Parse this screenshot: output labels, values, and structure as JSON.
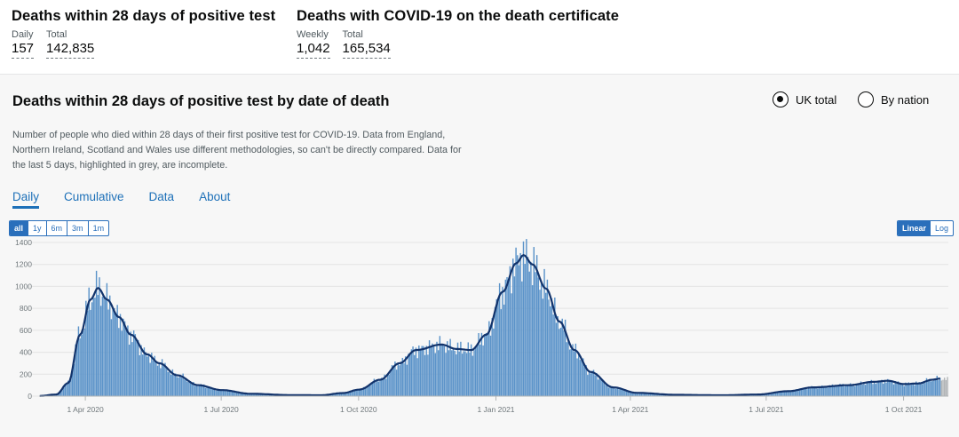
{
  "headline": {
    "deaths28": {
      "title": "Deaths within 28 days of positive test",
      "daily_label": "Daily",
      "daily_value": "157",
      "total_label": "Total",
      "total_value": "142,835"
    },
    "certificate": {
      "title": "Deaths with COVID-19 on the death certificate",
      "weekly_label": "Weekly",
      "weekly_value": "1,042",
      "total_label": "Total",
      "total_value": "165,534"
    }
  },
  "card": {
    "title": "Deaths within 28 days of positive test by date of death",
    "radio": {
      "uk_total": "UK total",
      "by_nation": "By nation",
      "selected": "uk_total"
    },
    "description": "Number of people who died within 28 days of their first positive test for COVID-19. Data from England, Northern Ireland, Scotland and Wales use different methodologies, so can't be directly compared. Data for the last 5 days, highlighted in grey, are incomplete.",
    "tabs": [
      "Daily",
      "Cumulative",
      "Data",
      "About"
    ],
    "active_tab": "Daily",
    "range_buttons": [
      "all",
      "1y",
      "6m",
      "3m",
      "1m"
    ],
    "active_range": "all",
    "scale_buttons": [
      "Linear",
      "Log"
    ],
    "active_scale": "Linear"
  },
  "colors": {
    "bar": "#5b93c9",
    "bar_incomplete": "#b1b4b6",
    "avg_line": "#12336b",
    "link": "#1d70b8"
  },
  "chart_data": {
    "type": "bar",
    "title": "",
    "xlabel": "",
    "ylabel": "",
    "ylim": [
      0,
      1400
    ],
    "yticks": [
      0,
      200,
      400,
      600,
      800,
      1000,
      1200,
      1400
    ],
    "xticks": [
      "1 Apr 2020",
      "1 Jul 2020",
      "1 Oct 2020",
      "1 Jan 2021",
      "1 Apr 2021",
      "1 Jul 2021",
      "1 Oct 2021"
    ],
    "x_start": "2020-03-01",
    "x_end": "2021-10-30",
    "incomplete_days": 5,
    "series_keypoints": [
      [
        "2020-03-01",
        2
      ],
      [
        "2020-03-12",
        15
      ],
      [
        "2020-03-20",
        120
      ],
      [
        "2020-03-28",
        560
      ],
      [
        "2020-04-04",
        880
      ],
      [
        "2020-04-09",
        985
      ],
      [
        "2020-04-15",
        880
      ],
      [
        "2020-04-23",
        720
      ],
      [
        "2020-05-01",
        560
      ],
      [
        "2020-05-12",
        380
      ],
      [
        "2020-05-20",
        300
      ],
      [
        "2020-06-01",
        190
      ],
      [
        "2020-06-15",
        100
      ],
      [
        "2020-07-01",
        55
      ],
      [
        "2020-07-20",
        22
      ],
      [
        "2020-08-15",
        10
      ],
      [
        "2020-09-05",
        8
      ],
      [
        "2020-09-20",
        28
      ],
      [
        "2020-10-01",
        60
      ],
      [
        "2020-10-15",
        150
      ],
      [
        "2020-10-28",
        300
      ],
      [
        "2020-11-08",
        420
      ],
      [
        "2020-11-25",
        470
      ],
      [
        "2020-12-05",
        430
      ],
      [
        "2020-12-15",
        420
      ],
      [
        "2020-12-25",
        560
      ],
      [
        "2021-01-05",
        950
      ],
      [
        "2021-01-14",
        1210
      ],
      [
        "2021-01-19",
        1285
      ],
      [
        "2021-01-25",
        1200
      ],
      [
        "2021-02-03",
        980
      ],
      [
        "2021-02-12",
        680
      ],
      [
        "2021-02-22",
        420
      ],
      [
        "2021-03-05",
        220
      ],
      [
        "2021-03-20",
        80
      ],
      [
        "2021-04-05",
        30
      ],
      [
        "2021-05-01",
        12
      ],
      [
        "2021-06-01",
        8
      ],
      [
        "2021-06-25",
        15
      ],
      [
        "2021-07-15",
        45
      ],
      [
        "2021-08-01",
        80
      ],
      [
        "2021-08-25",
        100
      ],
      [
        "2021-09-10",
        130
      ],
      [
        "2021-09-20",
        140
      ],
      [
        "2021-10-01",
        110
      ],
      [
        "2021-10-10",
        115
      ],
      [
        "2021-10-20",
        150
      ],
      [
        "2021-10-25",
        160
      ],
      [
        "2021-10-30",
        150
      ]
    ]
  }
}
